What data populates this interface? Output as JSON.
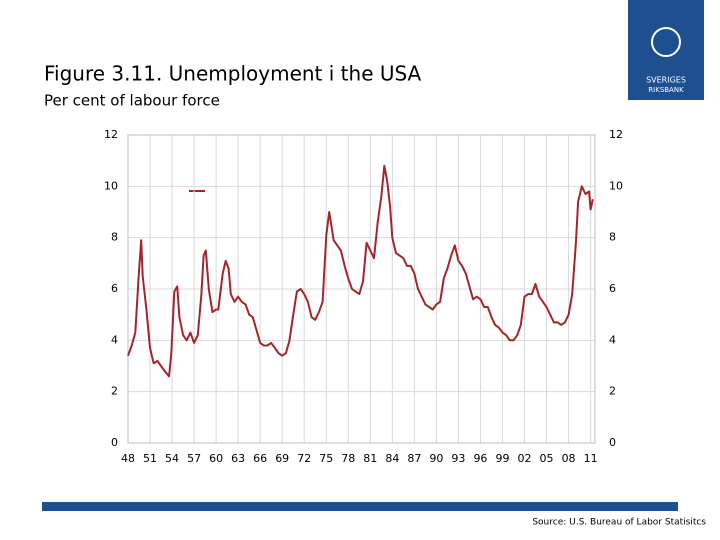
{
  "title": "Figure  3.11. Unemployment i the USA",
  "subtitle": "Per cent of labour force",
  "source": "Source: U.S. Bureau of Labor Statisitcs",
  "logo": {
    "line1": "SVERIGES",
    "line2": "RIKSBANK"
  },
  "chart_data": {
    "type": "line",
    "color": "#a3252b",
    "grid": true,
    "x": [
      1948.0,
      1948.5,
      1949.0,
      1949.5,
      1949.8,
      1950.0,
      1950.5,
      1951.0,
      1951.5,
      1952.0,
      1952.5,
      1953.0,
      1953.6,
      1953.9,
      1954.3,
      1954.7,
      1955.0,
      1955.5,
      1956.0,
      1956.5,
      1957.0,
      1957.5,
      1958.0,
      1958.3,
      1958.6,
      1959.0,
      1959.5,
      1960.0,
      1960.3,
      1960.9,
      1961.3,
      1961.7,
      1962.0,
      1962.5,
      1963.0,
      1963.5,
      1964.0,
      1964.5,
      1965.0,
      1965.5,
      1966.0,
      1966.5,
      1967.0,
      1967.5,
      1968.0,
      1968.5,
      1969.0,
      1969.5,
      1970.0,
      1970.5,
      1971.0,
      1971.5,
      1972.0,
      1972.5,
      1973.0,
      1973.5,
      1974.0,
      1974.5,
      1975.0,
      1975.4,
      1975.8,
      1976.0,
      1976.5,
      1977.0,
      1977.5,
      1978.0,
      1978.5,
      1979.0,
      1979.5,
      1980.0,
      1980.5,
      1981.0,
      1981.5,
      1982.0,
      1982.5,
      1982.9,
      1983.3,
      1983.7,
      1984.0,
      1984.5,
      1985.0,
      1985.5,
      1986.0,
      1986.5,
      1987.0,
      1987.5,
      1988.0,
      1988.5,
      1989.0,
      1989.5,
      1990.0,
      1990.5,
      1991.0,
      1991.5,
      1992.0,
      1992.5,
      1993.0,
      1993.5,
      1994.0,
      1994.5,
      1995.0,
      1995.5,
      1996.0,
      1996.5,
      1997.0,
      1997.5,
      1998.0,
      1998.5,
      1999.0,
      1999.5,
      2000.0,
      2000.5,
      2001.0,
      2001.5,
      2002.0,
      2002.5,
      2003.0,
      2003.5,
      2004.0,
      2004.5,
      2005.0,
      2005.5,
      2006.0,
      2006.5,
      2007.0,
      2007.5,
      2008.0,
      2008.5,
      2009.0,
      2009.3,
      2009.8,
      2010.3,
      2010.8,
      2011.0,
      2011.3
    ],
    "values": [
      3.4,
      3.8,
      4.3,
      6.7,
      7.9,
      6.5,
      5.2,
      3.7,
      3.1,
      3.2,
      3.0,
      2.8,
      2.6,
      3.5,
      5.9,
      6.1,
      4.9,
      4.2,
      4.0,
      4.3,
      3.9,
      4.2,
      5.8,
      7.3,
      7.5,
      6.0,
      5.1,
      5.2,
      5.2,
      6.6,
      7.1,
      6.8,
      5.8,
      5.5,
      5.7,
      5.5,
      5.4,
      5.0,
      4.9,
      4.4,
      3.9,
      3.8,
      3.8,
      3.9,
      3.7,
      3.5,
      3.4,
      3.5,
      4.0,
      5.0,
      5.9,
      6.0,
      5.8,
      5.5,
      4.9,
      4.8,
      5.1,
      5.5,
      8.1,
      9.0,
      8.3,
      7.9,
      7.7,
      7.5,
      6.9,
      6.4,
      6.0,
      5.9,
      5.8,
      6.3,
      7.8,
      7.5,
      7.2,
      8.6,
      9.6,
      10.8,
      10.2,
      9.2,
      8.0,
      7.4,
      7.3,
      7.2,
      6.9,
      6.9,
      6.6,
      6.0,
      5.7,
      5.4,
      5.3,
      5.2,
      5.4,
      5.5,
      6.4,
      6.8,
      7.3,
      7.7,
      7.1,
      6.9,
      6.6,
      6.1,
      5.6,
      5.7,
      5.6,
      5.3,
      5.3,
      4.9,
      4.6,
      4.5,
      4.3,
      4.2,
      4.0,
      4.0,
      4.2,
      4.6,
      5.7,
      5.8,
      5.8,
      6.2,
      5.7,
      5.5,
      5.3,
      5.0,
      4.7,
      4.7,
      4.6,
      4.7,
      5.0,
      5.8,
      7.8,
      9.4,
      10.0,
      9.7,
      9.8,
      9.1,
      9.5
    ],
    "xlim": [
      1948,
      2011.6
    ],
    "xticks": [
      {
        "value": 1948,
        "label": "48"
      },
      {
        "value": 1951,
        "label": "51"
      },
      {
        "value": 1954,
        "label": "54"
      },
      {
        "value": 1957,
        "label": "57"
      },
      {
        "value": 1960,
        "label": "60"
      },
      {
        "value": 1963,
        "label": "63"
      },
      {
        "value": 1966,
        "label": "66"
      },
      {
        "value": 1969,
        "label": "69"
      },
      {
        "value": 1972,
        "label": "72"
      },
      {
        "value": 1975,
        "label": "75"
      },
      {
        "value": 1978,
        "label": "78"
      },
      {
        "value": 1981,
        "label": "81"
      },
      {
        "value": 1984,
        "label": "84"
      },
      {
        "value": 1987,
        "label": "87"
      },
      {
        "value": 1990,
        "label": "90"
      },
      {
        "value": 1993,
        "label": "93"
      },
      {
        "value": 1996,
        "label": "96"
      },
      {
        "value": 1999,
        "label": "99"
      },
      {
        "value": 2002,
        "label": "02"
      },
      {
        "value": 2005,
        "label": "05"
      },
      {
        "value": 2008,
        "label": "08"
      },
      {
        "value": 2011,
        "label": "11"
      }
    ],
    "ylim": [
      0,
      12
    ],
    "yticks": [
      0,
      2,
      4,
      6,
      8,
      10,
      12
    ],
    "y2lim": [
      0,
      12
    ],
    "y2ticks": [
      0,
      2,
      4,
      6,
      8,
      10,
      12
    ]
  }
}
